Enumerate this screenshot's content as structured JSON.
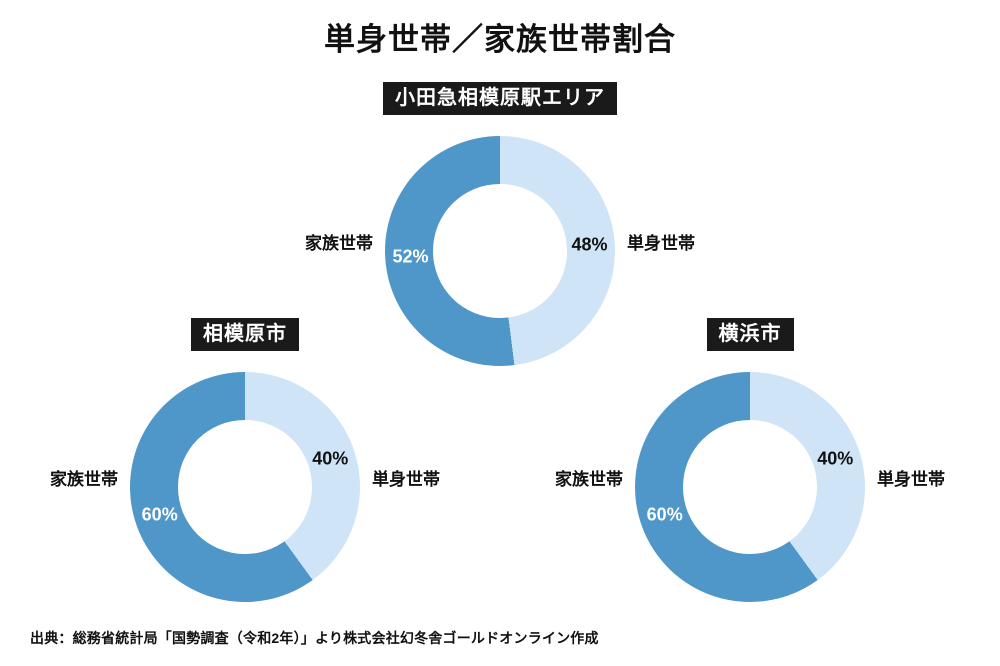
{
  "page": {
    "title": "単身世帯／家族世帯割合",
    "source_note": "出典：総務省統計局「国勢調査（令和2年）」より株式会社幻冬舎ゴールドオンライン作成"
  },
  "colors": {
    "family_segment": "#4f96c9",
    "single_segment": "#cfe4f7",
    "badge_background": "#1a1a1a"
  },
  "chart_data": [
    {
      "type": "pie",
      "donut": true,
      "title": "小田急相模原駅エリア",
      "legend_left_label": "家族世帯",
      "legend_right_label": "単身世帯",
      "segments": [
        {
          "label": "単身世帯",
          "value": 48,
          "pct_label": "48%",
          "color": "#cfe4f7",
          "text_color": "#111111"
        },
        {
          "label": "家族世帯",
          "value": 52,
          "pct_label": "52%",
          "color": "#4f96c9",
          "text_color": "#ffffff"
        }
      ]
    },
    {
      "type": "pie",
      "donut": true,
      "title": "相模原市",
      "legend_left_label": "家族世帯",
      "legend_right_label": "単身世帯",
      "segments": [
        {
          "label": "単身世帯",
          "value": 40,
          "pct_label": "40%",
          "color": "#cfe4f7",
          "text_color": "#111111"
        },
        {
          "label": "家族世帯",
          "value": 60,
          "pct_label": "60%",
          "color": "#4f96c9",
          "text_color": "#ffffff"
        }
      ]
    },
    {
      "type": "pie",
      "donut": true,
      "title": "横浜市",
      "legend_left_label": "家族世帯",
      "legend_right_label": "単身世帯",
      "segments": [
        {
          "label": "単身世帯",
          "value": 40,
          "pct_label": "40%",
          "color": "#cfe4f7",
          "text_color": "#111111"
        },
        {
          "label": "家族世帯",
          "value": 60,
          "pct_label": "60%",
          "color": "#4f96c9",
          "text_color": "#ffffff"
        }
      ]
    }
  ]
}
